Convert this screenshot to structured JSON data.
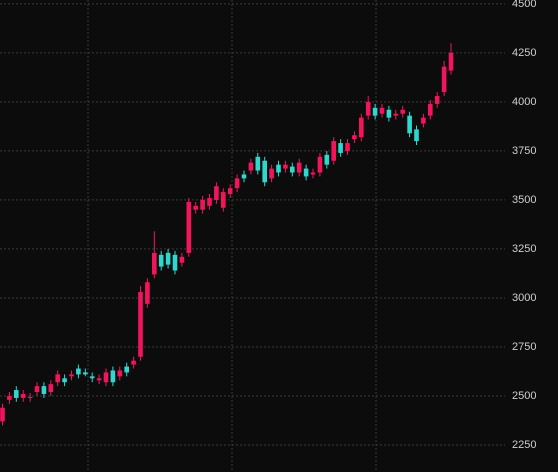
{
  "chart_data": {
    "type": "candlestick",
    "categories": [
      null,
      null,
      null,
      null,
      null,
      null,
      null,
      null,
      null,
      null,
      null,
      null,
      null,
      null,
      null,
      null,
      null,
      null,
      null,
      null,
      null,
      null,
      null,
      null,
      null,
      null,
      null,
      null,
      null,
      null,
      null,
      null,
      null,
      null,
      null,
      null,
      null,
      null,
      null,
      null,
      null,
      null,
      null,
      null,
      null,
      null,
      null,
      null,
      null,
      null,
      null,
      null,
      null,
      null,
      null,
      null,
      null,
      null,
      null,
      null,
      null,
      null,
      null,
      null,
      null,
      null
    ],
    "open": [
      2370,
      2480,
      2530,
      2490,
      2490,
      2520,
      2550,
      2520,
      2570,
      2590,
      2600,
      2640,
      2620,
      2600,
      2580,
      2570,
      2630,
      2600,
      2650,
      2660,
      2700,
      2970,
      3120,
      3220,
      3230,
      3220,
      3180,
      3230,
      3450,
      3450,
      3470,
      3500,
      3460,
      3530,
      3560,
      3630,
      3650,
      3720,
      3700,
      3610,
      3680,
      3660,
      3670,
      3640,
      3660,
      3630,
      3640,
      3730,
      3700,
      3790,
      3750,
      3810,
      3820,
      3930,
      3970,
      3940,
      3960,
      3930,
      3940,
      3930,
      3860,
      3890,
      3930,
      3990,
      4050,
      4160
    ],
    "high": [
      2460,
      2520,
      2550,
      2530,
      2515,
      2570,
      2570,
      2580,
      2630,
      2610,
      2630,
      2660,
      2640,
      2620,
      2610,
      2640,
      2650,
      2650,
      2670,
      2700,
      3060,
      3100,
      3340,
      3240,
      3250,
      3240,
      3230,
      3510,
      3490,
      3520,
      3530,
      3590,
      3560,
      3580,
      3630,
      3650,
      3710,
      3740,
      3720,
      3680,
      3700,
      3700,
      3690,
      3710,
      3680,
      3660,
      3740,
      3750,
      3820,
      3810,
      3810,
      3850,
      3940,
      4030,
      3990,
      3990,
      3980,
      3960,
      3980,
      3950,
      3880,
      3940,
      4010,
      4050,
      4210,
      4300
    ],
    "low": [
      2350,
      2460,
      2470,
      2470,
      2470,
      2500,
      2490,
      2500,
      2550,
      2550,
      2580,
      2590,
      2600,
      2570,
      2560,
      2550,
      2550,
      2580,
      2600,
      2640,
      2680,
      2950,
      3100,
      3140,
      3150,
      3120,
      3160,
      3210,
      3430,
      3430,
      3450,
      3480,
      3440,
      3510,
      3540,
      3590,
      3630,
      3630,
      3570,
      3590,
      3620,
      3640,
      3620,
      3620,
      3600,
      3610,
      3620,
      3660,
      3680,
      3720,
      3730,
      3790,
      3800,
      3910,
      3910,
      3920,
      3900,
      3910,
      3920,
      3820,
      3780,
      3870,
      3910,
      3970,
      4030,
      4140
    ],
    "close": [
      2440,
      2500,
      2490,
      2510,
      2495,
      2550,
      2510,
      2560,
      2610,
      2570,
      2610,
      2610,
      2610,
      2590,
      2590,
      2620,
      2570,
      2630,
      2620,
      2680,
      3030,
      3080,
      3230,
      3160,
      3170,
      3140,
      3210,
      3490,
      3470,
      3500,
      3510,
      3570,
      3540,
      3560,
      3610,
      3610,
      3690,
      3650,
      3590,
      3660,
      3640,
      3680,
      3640,
      3690,
      3620,
      3640,
      3720,
      3680,
      3800,
      3740,
      3790,
      3830,
      3920,
      4000,
      3930,
      3970,
      3920,
      3940,
      3960,
      3840,
      3800,
      3920,
      3990,
      4030,
      4180,
      4250
    ],
    "up_color": "#f2155c",
    "down_color": "#2fd8cf",
    "ylim": [
      2112,
      4520
    ],
    "yticks": [
      2250,
      2500,
      2750,
      3000,
      3250,
      3500,
      3750,
      4000,
      4250,
      4500
    ],
    "grid": true
  }
}
